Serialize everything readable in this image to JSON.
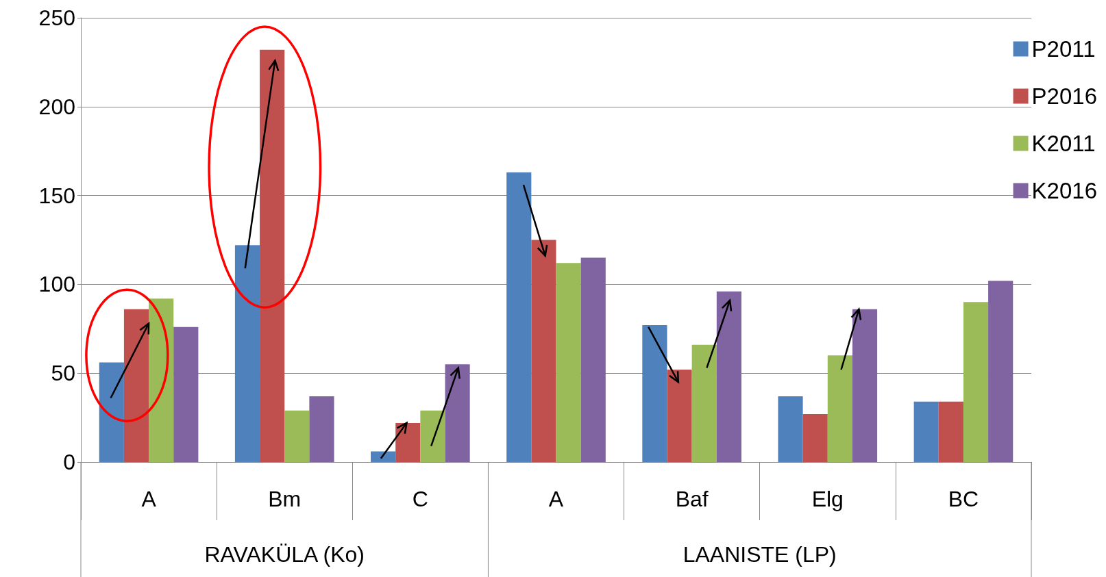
{
  "chart_data": {
    "type": "bar",
    "categories": [
      "A",
      "Bm",
      "C",
      "A",
      "Baf",
      "Elg",
      "BC"
    ],
    "series": [
      {
        "name": "P2011",
        "color": "#4f81bd",
        "values": [
          56,
          122,
          6,
          163,
          77,
          37,
          34
        ]
      },
      {
        "name": "P2016",
        "color": "#c0504d",
        "values": [
          86,
          232,
          22,
          125,
          52,
          27,
          34
        ]
      },
      {
        "name": "K2011",
        "color": "#9bbb59",
        "values": [
          92,
          29,
          29,
          112,
          66,
          60,
          90
        ]
      },
      {
        "name": "K2016",
        "color": "#8064a2",
        "values": [
          76,
          37,
          55,
          115,
          96,
          86,
          102
        ]
      }
    ],
    "annotations": [
      "RAVAKÜLA (Ko)",
      "LAANISTE (LP)"
    ],
    "ylim": [
      0,
      250
    ],
    "yticks": [
      0,
      50,
      100,
      150,
      200,
      250
    ],
    "grid": "y",
    "legend": "right"
  }
}
